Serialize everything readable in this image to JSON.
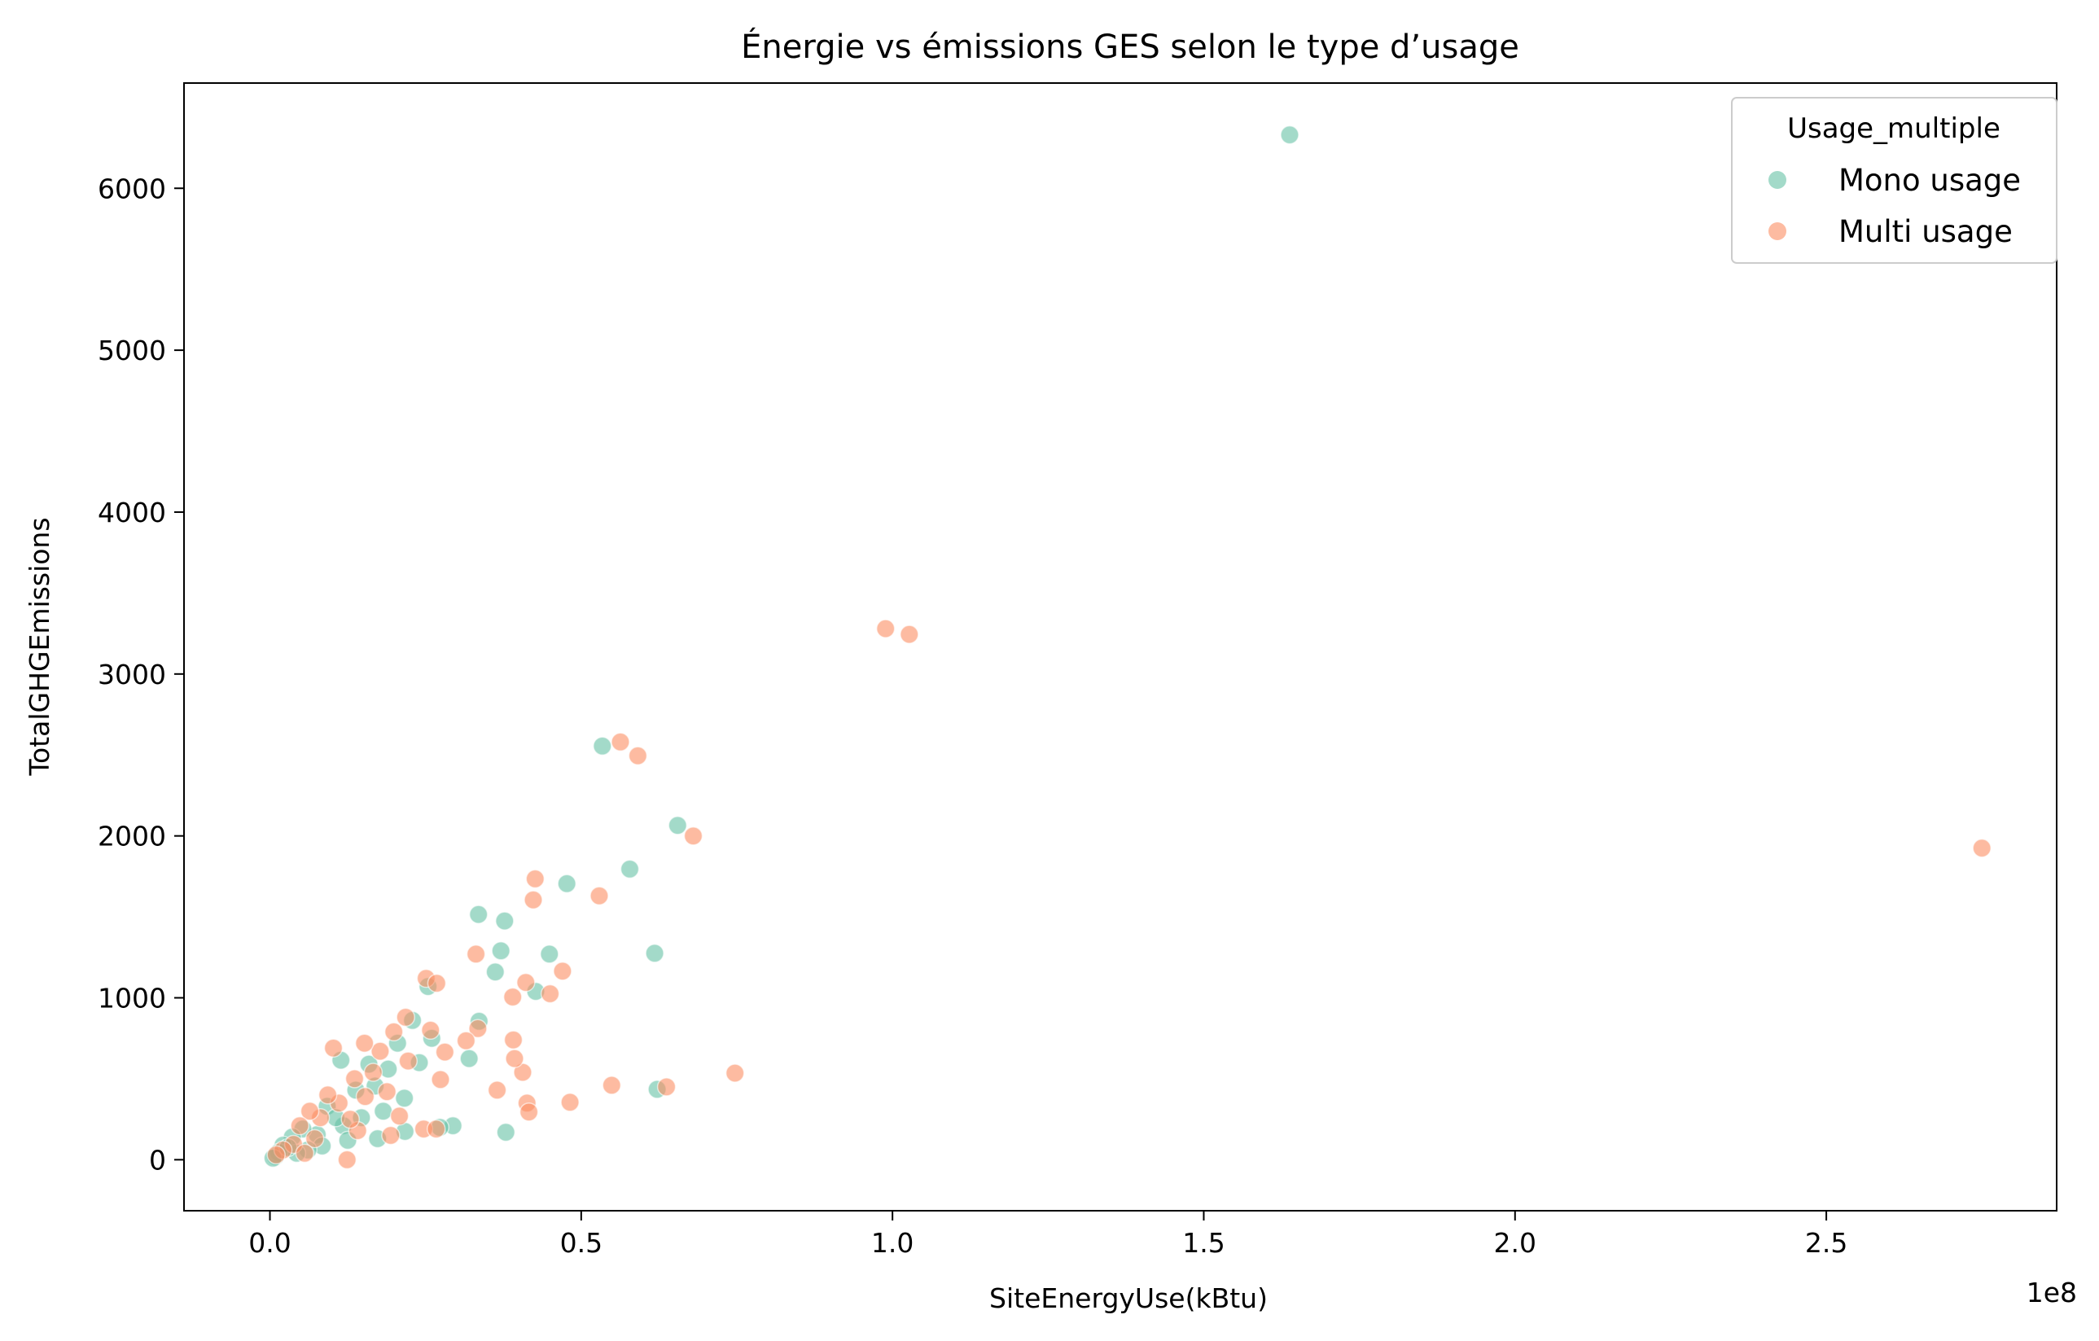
{
  "chart_data": {
    "type": "scatter",
    "title": "Énergie vs émissions GES selon le type d’usage",
    "xlabel": "SiteEnergyUse(kBtu)",
    "ylabel": "TotalGHGEmissions",
    "x_offset_label": "1e8",
    "x_scale_factor": 100000000,
    "xlim": [
      -13800000,
      287000000
    ],
    "ylim": [
      -315,
      6650
    ],
    "x_ticks": [
      0,
      50000000,
      100000000,
      150000000,
      200000000,
      250000000
    ],
    "x_tick_labels": [
      "0.0",
      "0.5",
      "1.0",
      "1.5",
      "2.0",
      "2.5"
    ],
    "y_ticks": [
      0,
      1000,
      2000,
      3000,
      4000,
      5000,
      6000
    ],
    "y_tick_labels": [
      "0",
      "1000",
      "2000",
      "3000",
      "4000",
      "5000",
      "6000"
    ],
    "grid": false,
    "legend": {
      "title": "Usage_multiple",
      "placement": "top-right"
    },
    "series": [
      {
        "name": "Mono usage",
        "color": "#66c2a5",
        "points": [
          [
            163800000,
            6330
          ],
          [
            53400000,
            2555
          ],
          [
            65500000,
            2065
          ],
          [
            57800000,
            1795
          ],
          [
            47700000,
            1705
          ],
          [
            61800000,
            1275
          ],
          [
            44900000,
            1270
          ],
          [
            33500000,
            1515
          ],
          [
            37700000,
            1475
          ],
          [
            37100000,
            1290
          ],
          [
            36200000,
            1160
          ],
          [
            42700000,
            1040
          ],
          [
            25400000,
            1070
          ],
          [
            33600000,
            855
          ],
          [
            32000000,
            625
          ],
          [
            62200000,
            435
          ],
          [
            37900000,
            170
          ],
          [
            22900000,
            860
          ],
          [
            24000000,
            600
          ],
          [
            20500000,
            720
          ],
          [
            19000000,
            560
          ],
          [
            15900000,
            590
          ],
          [
            11400000,
            615
          ],
          [
            16900000,
            455
          ],
          [
            13800000,
            430
          ],
          [
            21600000,
            380
          ],
          [
            18200000,
            300
          ],
          [
            14700000,
            260
          ],
          [
            9200000,
            330
          ],
          [
            11800000,
            210
          ],
          [
            7600000,
            155
          ],
          [
            5300000,
            190
          ],
          [
            3600000,
            140
          ],
          [
            2100000,
            90
          ],
          [
            8400000,
            85
          ],
          [
            12500000,
            120
          ],
          [
            6100000,
            60
          ],
          [
            1400000,
            45
          ],
          [
            4300000,
            40
          ],
          [
            29400000,
            210
          ],
          [
            27300000,
            200
          ],
          [
            21700000,
            175
          ],
          [
            26000000,
            750
          ],
          [
            17300000,
            130
          ],
          [
            10600000,
            260
          ],
          [
            900000,
            20
          ],
          [
            500000,
            10
          ],
          [
            2900000,
            75
          ]
        ]
      },
      {
        "name": "Multi usage",
        "color": "#fc8d62",
        "points": [
          [
            275000000,
            1925
          ],
          [
            98900000,
            3280
          ],
          [
            102700000,
            3245
          ],
          [
            56300000,
            2580
          ],
          [
            59100000,
            2495
          ],
          [
            68000000,
            2000
          ],
          [
            42600000,
            1735
          ],
          [
            42300000,
            1605
          ],
          [
            52900000,
            1630
          ],
          [
            47000000,
            1165
          ],
          [
            45000000,
            1025
          ],
          [
            39000000,
            1005
          ],
          [
            41100000,
            1095
          ],
          [
            33100000,
            1270
          ],
          [
            25100000,
            1120
          ],
          [
            26800000,
            1090
          ],
          [
            74700000,
            535
          ],
          [
            63700000,
            450
          ],
          [
            54900000,
            460
          ],
          [
            48200000,
            355
          ],
          [
            41300000,
            350
          ],
          [
            41600000,
            295
          ],
          [
            36500000,
            430
          ],
          [
            40600000,
            540
          ],
          [
            39300000,
            625
          ],
          [
            39100000,
            740
          ],
          [
            33400000,
            810
          ],
          [
            31500000,
            735
          ],
          [
            27400000,
            495
          ],
          [
            28100000,
            665
          ],
          [
            25800000,
            800
          ],
          [
            21800000,
            880
          ],
          [
            19900000,
            790
          ],
          [
            17700000,
            670
          ],
          [
            15200000,
            720
          ],
          [
            10200000,
            690
          ],
          [
            18800000,
            420
          ],
          [
            16600000,
            540
          ],
          [
            13600000,
            500
          ],
          [
            11100000,
            350
          ],
          [
            9300000,
            400
          ],
          [
            8100000,
            260
          ],
          [
            6400000,
            300
          ],
          [
            4800000,
            210
          ],
          [
            12400000,
            0
          ],
          [
            24700000,
            190
          ],
          [
            26700000,
            190
          ],
          [
            22200000,
            610
          ],
          [
            19400000,
            150
          ],
          [
            14100000,
            180
          ],
          [
            7200000,
            130
          ],
          [
            3800000,
            95
          ],
          [
            2100000,
            60
          ],
          [
            1000000,
            30
          ],
          [
            15300000,
            390
          ],
          [
            20800000,
            270
          ],
          [
            12900000,
            250
          ],
          [
            5600000,
            40
          ]
        ]
      }
    ]
  }
}
